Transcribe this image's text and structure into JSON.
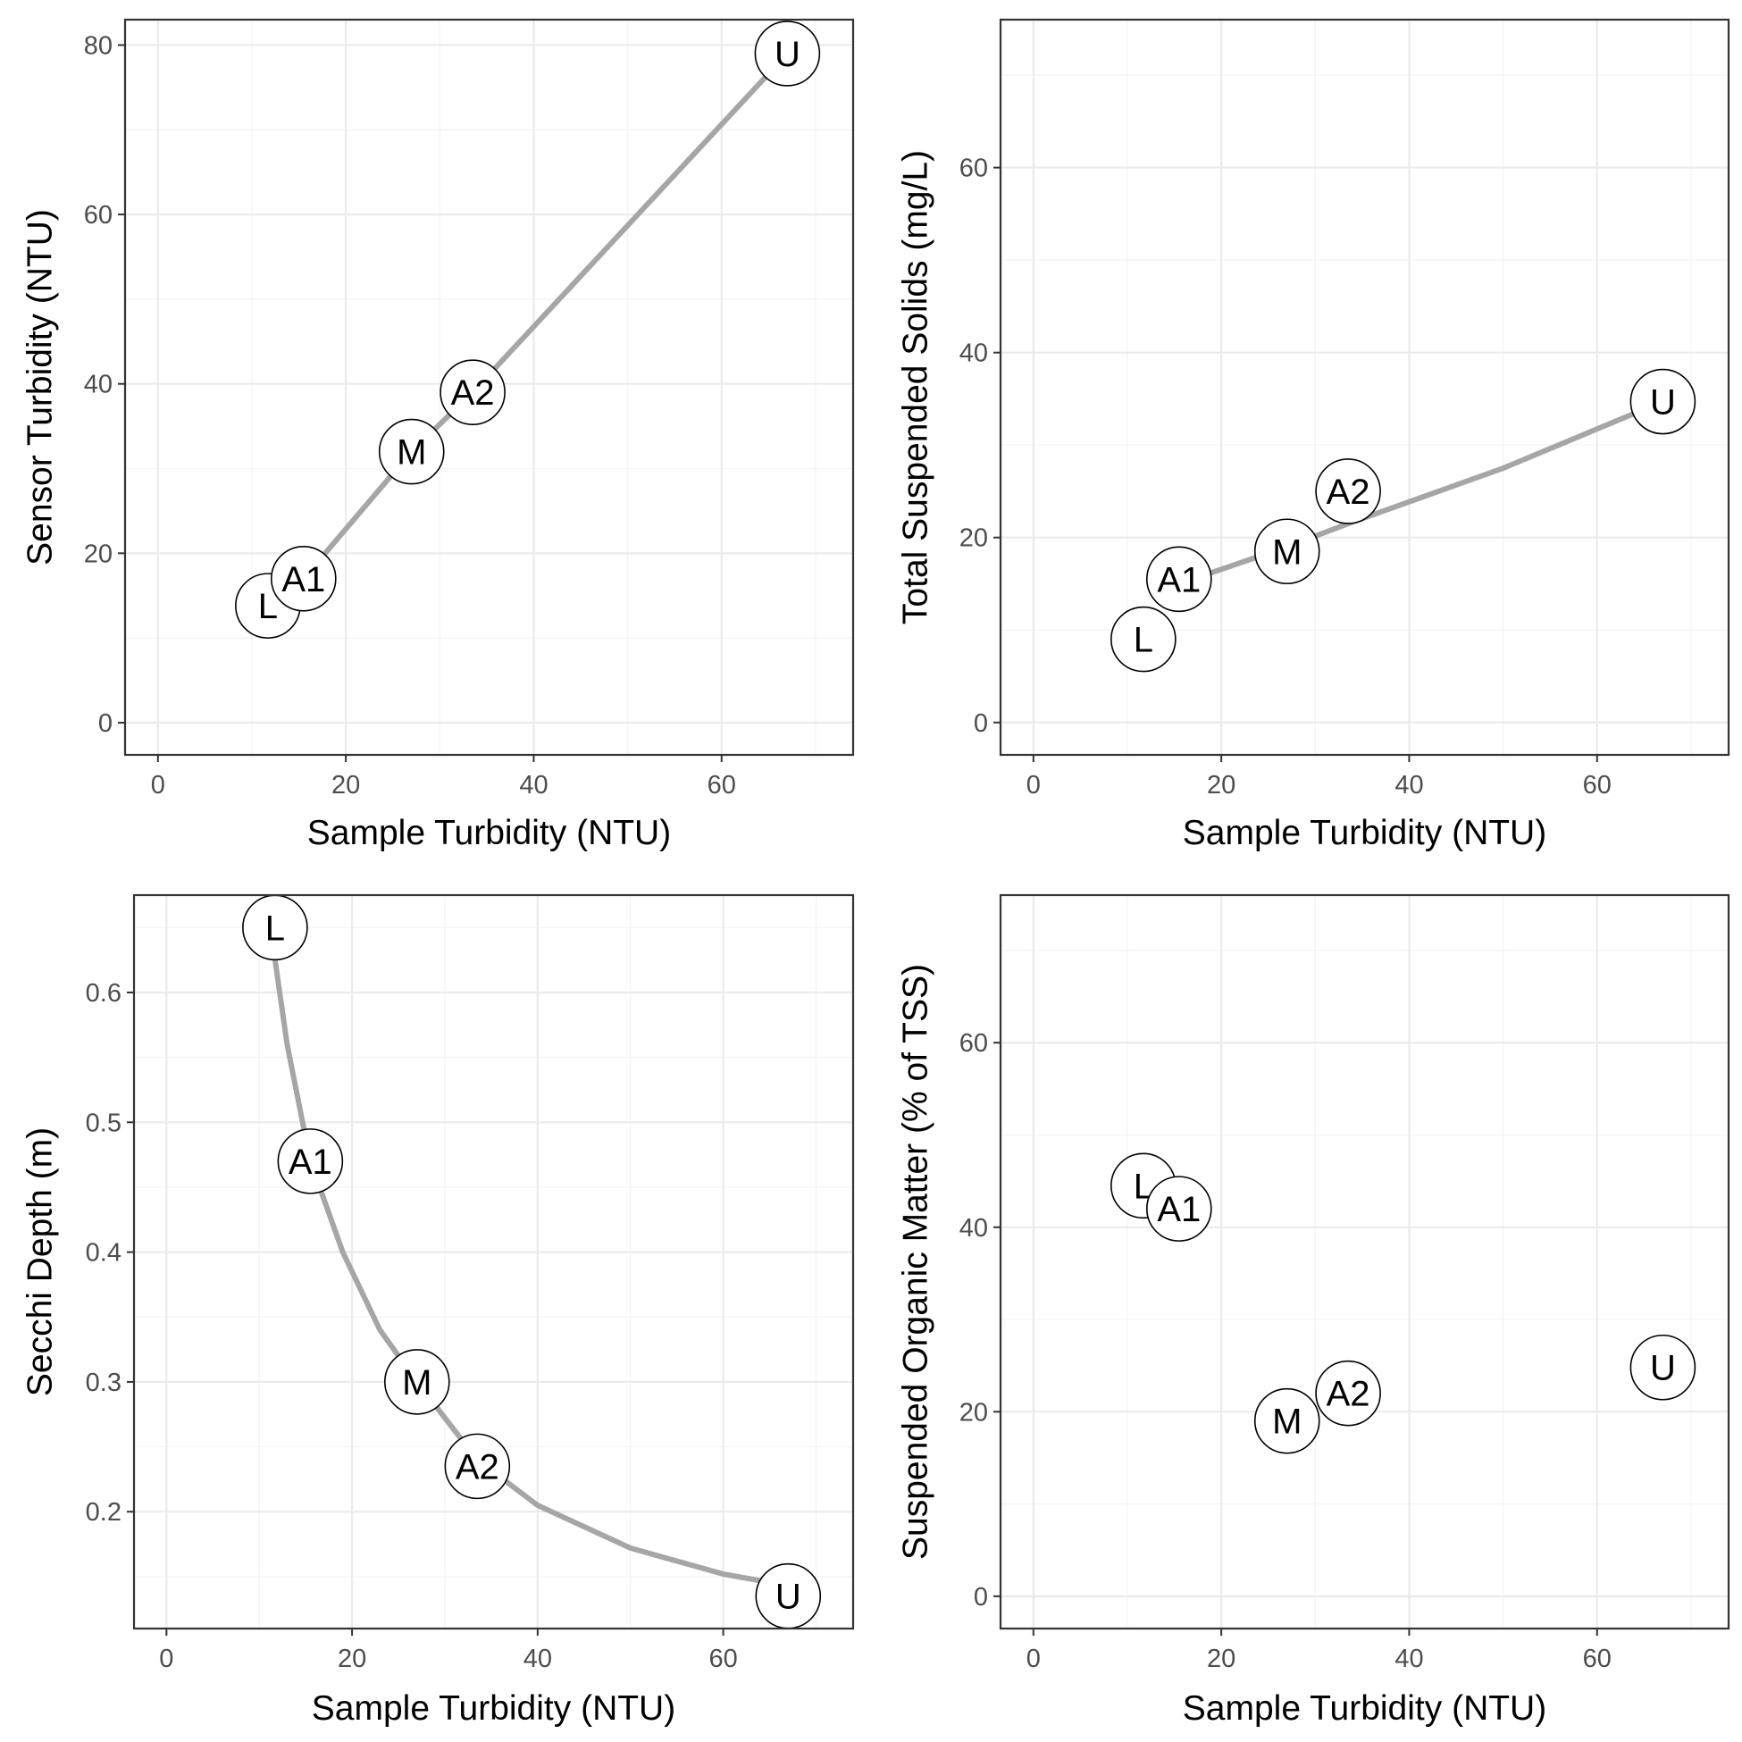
{
  "chart_data": [
    {
      "type": "scatter",
      "xlabel": "Sample Turbidity (NTU)",
      "ylabel": "Sensor Turbidity (NTU)",
      "xlim": [
        -3.5,
        74
      ],
      "ylim": [
        -3.8,
        83
      ],
      "x_ticks": [
        "0",
        "20",
        "40",
        "60"
      ],
      "y_ticks": [
        "0",
        "20",
        "40",
        "60",
        "80"
      ],
      "grid": true,
      "fit_line": true,
      "points": [
        {
          "label": "L",
          "x": 11.7,
          "y": 13.8
        },
        {
          "label": "A1",
          "x": 15.5,
          "y": 17.0
        },
        {
          "label": "M",
          "x": 27.0,
          "y": 32.0
        },
        {
          "label": "A2",
          "x": 33.5,
          "y": 39.0
        },
        {
          "label": "U",
          "x": 67.0,
          "y": 79.0
        }
      ],
      "line_points": [
        [
          15.5,
          17.0
        ],
        [
          27.0,
          32.0
        ],
        [
          33.5,
          39.0
        ],
        [
          67.0,
          79.0
        ]
      ]
    },
    {
      "type": "scatter",
      "xlabel": "Sample Turbidity (NTU)",
      "ylabel": "Total Suspended Solids (mg/L)",
      "xlim": [
        -3.5,
        74
      ],
      "ylim": [
        -3.5,
        76
      ],
      "x_ticks": [
        "0",
        "20",
        "40",
        "60"
      ],
      "y_ticks": [
        "0",
        "20",
        "40",
        "60"
      ],
      "grid": true,
      "fit_line": true,
      "points": [
        {
          "label": "L",
          "x": 11.7,
          "y": 9.0
        },
        {
          "label": "A1",
          "x": 15.5,
          "y": 15.5
        },
        {
          "label": "M",
          "x": 27.0,
          "y": 18.5
        },
        {
          "label": "A2",
          "x": 33.5,
          "y": 25.0
        },
        {
          "label": "U",
          "x": 67.0,
          "y": 34.7
        }
      ],
      "line_points": [
        [
          15.5,
          15.0
        ],
        [
          27.0,
          19.0
        ],
        [
          33.5,
          21.5
        ],
        [
          50.0,
          27.5
        ],
        [
          67.0,
          34.7
        ]
      ]
    },
    {
      "type": "scatter",
      "xlabel": "Sample Turbidity (NTU)",
      "ylabel": "Secchi Depth (m)",
      "xlim": [
        -3.5,
        74
      ],
      "ylim": [
        0.11,
        0.675
      ],
      "x_ticks": [
        "0",
        "20",
        "40",
        "60"
      ],
      "y_ticks": [
        "0.2",
        "0.3",
        "0.4",
        "0.5",
        "0.6"
      ],
      "grid": true,
      "fit_line": true,
      "points": [
        {
          "label": "L",
          "x": 11.7,
          "y": 0.65
        },
        {
          "label": "A1",
          "x": 15.5,
          "y": 0.47
        },
        {
          "label": "M",
          "x": 27.0,
          "y": 0.3
        },
        {
          "label": "A2",
          "x": 33.5,
          "y": 0.235
        },
        {
          "label": "U",
          "x": 67.0,
          "y": 0.135
        }
      ],
      "line_points": [
        [
          11.7,
          0.625
        ],
        [
          13.0,
          0.56
        ],
        [
          15.5,
          0.47
        ],
        [
          19.0,
          0.4
        ],
        [
          23.0,
          0.34
        ],
        [
          27.0,
          0.3
        ],
        [
          33.5,
          0.24
        ],
        [
          40.0,
          0.205
        ],
        [
          50.0,
          0.172
        ],
        [
          60.0,
          0.152
        ],
        [
          67.0,
          0.143
        ]
      ]
    },
    {
      "type": "scatter",
      "xlabel": "Sample Turbidity (NTU)",
      "ylabel": "Suspended Organic Matter (% of TSS)",
      "xlim": [
        -3.5,
        74
      ],
      "ylim": [
        -3.5,
        76
      ],
      "x_ticks": [
        "0",
        "20",
        "40",
        "60"
      ],
      "y_ticks": [
        "0",
        "20",
        "40",
        "60"
      ],
      "grid": true,
      "fit_line": false,
      "points": [
        {
          "label": "L",
          "x": 11.7,
          "y": 44.5
        },
        {
          "label": "A1",
          "x": 15.5,
          "y": 42.0
        },
        {
          "label": "M",
          "x": 27.0,
          "y": 19.0
        },
        {
          "label": "A2",
          "x": 33.5,
          "y": 22.0
        },
        {
          "label": "U",
          "x": 67.0,
          "y": 24.8
        }
      ],
      "line_points": []
    }
  ]
}
